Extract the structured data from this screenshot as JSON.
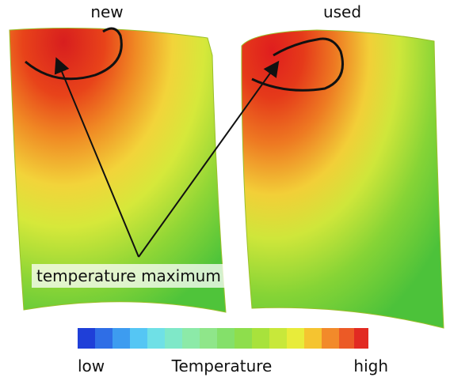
{
  "panels": [
    {
      "label": "new"
    },
    {
      "label": "used"
    }
  ],
  "annotation": "temperature maximum",
  "colorbar": {
    "title": "Temperature",
    "min_label": "low",
    "max_label": "high"
  }
}
